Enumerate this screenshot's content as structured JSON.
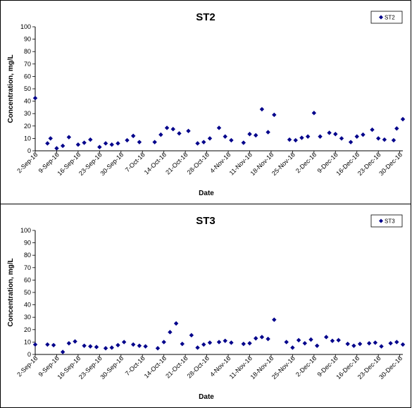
{
  "chart_data": [
    {
      "type": "scatter",
      "title": "ST2",
      "xlabel": "Date",
      "ylabel": "Concentration, mg/L",
      "ylim": [
        0,
        100
      ],
      "yticks": [
        0,
        10,
        20,
        30,
        40,
        50,
        60,
        70,
        80,
        90,
        100
      ],
      "xlim": [
        "2016-09-02",
        "2016-12-31"
      ],
      "xtick_labels": [
        "2-Sep-16",
        "9-Sep-16",
        "16-Sep-16",
        "23-Sep-16",
        "30-Sep-16",
        "7-Oct-16",
        "14-Oct-16",
        "21-Oct-16",
        "28-Oct-16",
        "4-Nov-16",
        "11-Nov-16",
        "18-Nov-16",
        "25-Nov-16",
        "2-Dec-16",
        "9-Dec-16",
        "16-Dec-16",
        "23-Dec-16",
        "30-Dec-16"
      ],
      "legend": {
        "position": "top-right"
      },
      "series": [
        {
          "name": "ST2",
          "color": "#00008B",
          "marker": "diamond",
          "points": [
            {
              "x": "2016-09-02",
              "y": 42.5
            },
            {
              "x": "2016-09-06",
              "y": 6
            },
            {
              "x": "2016-09-07",
              "y": 10
            },
            {
              "x": "2016-09-09",
              "y": 2
            },
            {
              "x": "2016-09-11",
              "y": 4
            },
            {
              "x": "2016-09-13",
              "y": 11
            },
            {
              "x": "2016-09-16",
              "y": 5
            },
            {
              "x": "2016-09-18",
              "y": 6.5
            },
            {
              "x": "2016-09-20",
              "y": 9
            },
            {
              "x": "2016-09-23",
              "y": 3
            },
            {
              "x": "2016-09-25",
              "y": 6
            },
            {
              "x": "2016-09-27",
              "y": 5
            },
            {
              "x": "2016-09-29",
              "y": 6
            },
            {
              "x": "2016-10-02",
              "y": 8.5
            },
            {
              "x": "2016-10-04",
              "y": 12
            },
            {
              "x": "2016-10-06",
              "y": 7
            },
            {
              "x": "2016-10-11",
              "y": 7
            },
            {
              "x": "2016-10-13",
              "y": 13
            },
            {
              "x": "2016-10-15",
              "y": 18.5
            },
            {
              "x": "2016-10-17",
              "y": 17.5
            },
            {
              "x": "2016-10-19",
              "y": 14
            },
            {
              "x": "2016-10-22",
              "y": 16
            },
            {
              "x": "2016-10-25",
              "y": 6
            },
            {
              "x": "2016-10-27",
              "y": 7
            },
            {
              "x": "2016-10-29",
              "y": 10
            },
            {
              "x": "2016-11-01",
              "y": 18.5
            },
            {
              "x": "2016-11-03",
              "y": 11.5
            },
            {
              "x": "2016-11-05",
              "y": 8.5
            },
            {
              "x": "2016-11-09",
              "y": 6.5
            },
            {
              "x": "2016-11-11",
              "y": 13.5
            },
            {
              "x": "2016-11-13",
              "y": 12.5
            },
            {
              "x": "2016-11-15",
              "y": 33.5
            },
            {
              "x": "2016-11-17",
              "y": 15
            },
            {
              "x": "2016-11-19",
              "y": 29
            },
            {
              "x": "2016-11-24",
              "y": 9
            },
            {
              "x": "2016-11-26",
              "y": 8.5
            },
            {
              "x": "2016-11-28",
              "y": 10.5
            },
            {
              "x": "2016-11-30",
              "y": 11.5
            },
            {
              "x": "2016-12-02",
              "y": 30.5
            },
            {
              "x": "2016-12-04",
              "y": 11.5
            },
            {
              "x": "2016-12-07",
              "y": 14.5
            },
            {
              "x": "2016-12-09",
              "y": 13.5
            },
            {
              "x": "2016-12-11",
              "y": 10
            },
            {
              "x": "2016-12-14",
              "y": 7
            },
            {
              "x": "2016-12-16",
              "y": 11.5
            },
            {
              "x": "2016-12-18",
              "y": 13
            },
            {
              "x": "2016-12-21",
              "y": 17
            },
            {
              "x": "2016-12-23",
              "y": 10
            },
            {
              "x": "2016-12-25",
              "y": 9
            },
            {
              "x": "2016-12-28",
              "y": 8.5
            },
            {
              "x": "2016-12-29",
              "y": 18
            },
            {
              "x": "2016-12-31",
              "y": 25.5
            }
          ]
        }
      ]
    },
    {
      "type": "scatter",
      "title": "ST3",
      "xlabel": "Date",
      "ylabel": "Concentration, mg/L",
      "ylim": [
        0,
        100
      ],
      "yticks": [
        0,
        10,
        20,
        30,
        40,
        50,
        60,
        70,
        80,
        90,
        100
      ],
      "xlim": [
        "2016-09-02",
        "2016-12-31"
      ],
      "xtick_labels": [
        "2-Sep-16",
        "9-Sep-16",
        "16-Sep-16",
        "23-Sep-16",
        "30-Sep-16",
        "7-Oct-16",
        "14-Oct-16",
        "21-Oct-16",
        "28-Oct-16",
        "4-Nov-16",
        "11-Nov-16",
        "18-Nov-16",
        "25-Nov-16",
        "2-Dec-16",
        "9-Dec-16",
        "16-Dec-16",
        "23-Dec-16",
        "30-Dec-16"
      ],
      "legend": {
        "position": "top-right"
      },
      "series": [
        {
          "name": "ST3",
          "color": "#00008B",
          "marker": "diamond",
          "points": [
            {
              "x": "2016-09-02",
              "y": 8
            },
            {
              "x": "2016-09-06",
              "y": 8
            },
            {
              "x": "2016-09-08",
              "y": 7.5
            },
            {
              "x": "2016-09-11",
              "y": 2
            },
            {
              "x": "2016-09-13",
              "y": 9
            },
            {
              "x": "2016-09-15",
              "y": 10.5
            },
            {
              "x": "2016-09-18",
              "y": 7
            },
            {
              "x": "2016-09-20",
              "y": 6.5
            },
            {
              "x": "2016-09-22",
              "y": 6
            },
            {
              "x": "2016-09-25",
              "y": 5
            },
            {
              "x": "2016-09-27",
              "y": 5.5
            },
            {
              "x": "2016-09-29",
              "y": 7.5
            },
            {
              "x": "2016-10-01",
              "y": 10
            },
            {
              "x": "2016-10-04",
              "y": 8
            },
            {
              "x": "2016-10-06",
              "y": 7
            },
            {
              "x": "2016-10-08",
              "y": 6.5
            },
            {
              "x": "2016-10-12",
              "y": 5
            },
            {
              "x": "2016-10-14",
              "y": 10
            },
            {
              "x": "2016-10-16",
              "y": 18
            },
            {
              "x": "2016-10-18",
              "y": 25
            },
            {
              "x": "2016-10-20",
              "y": 8.5
            },
            {
              "x": "2016-10-23",
              "y": 15.5
            },
            {
              "x": "2016-10-25",
              "y": 5.5
            },
            {
              "x": "2016-10-27",
              "y": 8
            },
            {
              "x": "2016-10-29",
              "y": 9.5
            },
            {
              "x": "2016-11-01",
              "y": 10
            },
            {
              "x": "2016-11-03",
              "y": 11
            },
            {
              "x": "2016-11-05",
              "y": 9.5
            },
            {
              "x": "2016-11-09",
              "y": 8.5
            },
            {
              "x": "2016-11-11",
              "y": 9
            },
            {
              "x": "2016-11-13",
              "y": 13
            },
            {
              "x": "2016-11-15",
              "y": 14
            },
            {
              "x": "2016-11-17",
              "y": 12.5
            },
            {
              "x": "2016-11-19",
              "y": 28
            },
            {
              "x": "2016-11-23",
              "y": 10
            },
            {
              "x": "2016-11-25",
              "y": 5.5
            },
            {
              "x": "2016-11-27",
              "y": 11.5
            },
            {
              "x": "2016-11-29",
              "y": 9
            },
            {
              "x": "2016-12-01",
              "y": 12
            },
            {
              "x": "2016-12-03",
              "y": 7
            },
            {
              "x": "2016-12-06",
              "y": 14
            },
            {
              "x": "2016-12-08",
              "y": 11
            },
            {
              "x": "2016-12-10",
              "y": 11.5
            },
            {
              "x": "2016-12-13",
              "y": 8.5
            },
            {
              "x": "2016-12-15",
              "y": 7
            },
            {
              "x": "2016-12-17",
              "y": 8.5
            },
            {
              "x": "2016-12-20",
              "y": 9
            },
            {
              "x": "2016-12-22",
              "y": 9.5
            },
            {
              "x": "2016-12-24",
              "y": 6.5
            },
            {
              "x": "2016-12-27",
              "y": 9
            },
            {
              "x": "2016-12-29",
              "y": 10
            },
            {
              "x": "2016-12-31",
              "y": 8
            }
          ]
        }
      ]
    }
  ]
}
